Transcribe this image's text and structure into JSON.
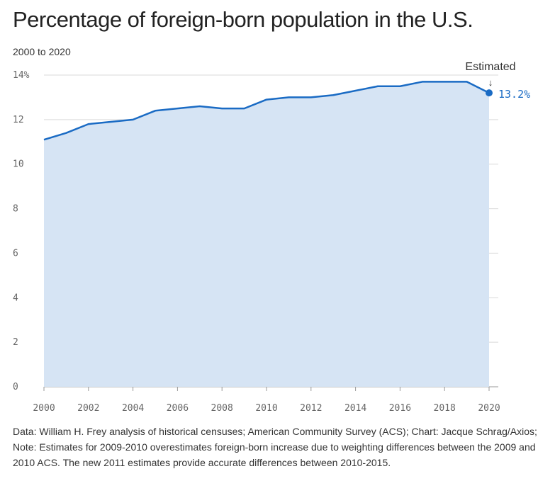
{
  "title": "Percentage of foreign-born population in the U.S.",
  "subtitle": "2000 to 2020",
  "note": "Data: William H. Frey analysis of historical censuses; American Community Survey (ACS); Chart: Jacque Schrag/Axios; Note: Estimates for 2009-2010 overestimates foreign-born increase due to weighting differences between the 2009 and 2010 ACS. The new 2011 estimates provide accurate differences between 2010-2015.",
  "colors": {
    "line": "#1a6bc4",
    "fill": "#d6e4f4",
    "grid": "#d9d9d9"
  },
  "chart_data": {
    "type": "area",
    "x": [
      2000,
      2001,
      2002,
      2003,
      2004,
      2005,
      2006,
      2007,
      2008,
      2009,
      2010,
      2011,
      2012,
      2013,
      2014,
      2015,
      2016,
      2017,
      2018,
      2019,
      2020
    ],
    "values": [
      11.1,
      11.4,
      11.8,
      11.9,
      12.0,
      12.4,
      12.5,
      12.6,
      12.5,
      12.5,
      12.9,
      13.0,
      13.0,
      13.1,
      13.3,
      13.5,
      13.5,
      13.7,
      13.7,
      13.7,
      13.2
    ],
    "xlim": [
      2000,
      2020
    ],
    "ylim": [
      0,
      14
    ],
    "x_ticks": [
      "2000",
      "2002",
      "2004",
      "2006",
      "2008",
      "2010",
      "2012",
      "2014",
      "2016",
      "2018",
      "2020"
    ],
    "y_ticks": [
      "14%",
      "12",
      "10",
      "8",
      "6",
      "4",
      "2",
      "0"
    ],
    "grid": true,
    "annotation": {
      "text": "Estimated",
      "arrow": "↓"
    },
    "end_label": "13.2%"
  }
}
